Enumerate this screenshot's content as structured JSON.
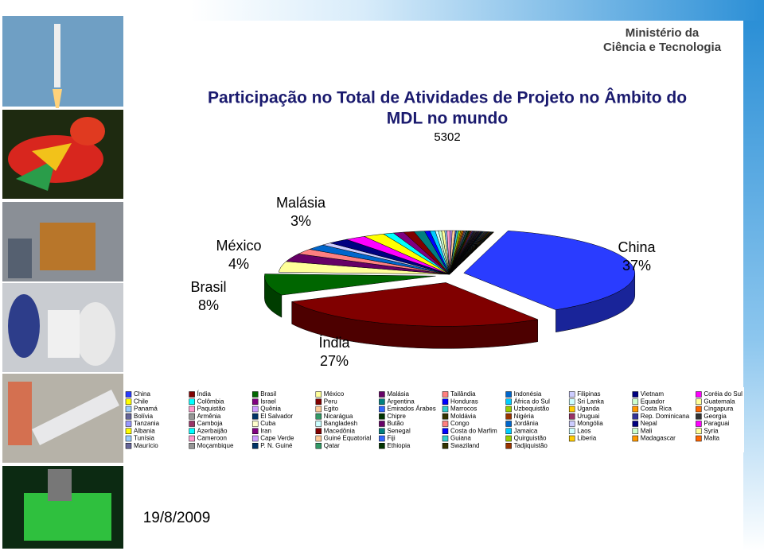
{
  "slide": {
    "logo": [
      "Ministério da",
      "Ciência e Tecnologia"
    ],
    "date": "19/8/2009"
  },
  "chart_data": {
    "type": "pie3d",
    "title": [
      "Participação no Total de Atividades de Projeto no Âmbito do",
      "MDL no mundo"
    ],
    "subtitle": "5302",
    "categories": [
      "China",
      "Índia",
      "Brasil",
      "México",
      "Malásia",
      "Tailândia",
      "Indonésia",
      "Filipinas",
      "Vietnam",
      "Coréia do Sul",
      "Chile",
      "Colômbia",
      "Israel",
      "Peru",
      "Argentina",
      "Honduras",
      "África do Sul",
      "Sri Lanka",
      "Equador",
      "Guatemala",
      "Panamá",
      "Paquistão",
      "Quênia",
      "Egito",
      "Emirados Árabes",
      "Marrocos",
      "Uzbequistão",
      "Uganda",
      "Costa Rica",
      "Cingapura",
      "Bolívia",
      "Armênia",
      "El Salvador",
      "Nicarágua",
      "Chipre",
      "Moldávia",
      "Nigéria",
      "Uruguai",
      "Rep. Dominicana",
      "Georgia",
      "Tanzania",
      "Camboja",
      "Cuba",
      "Bangladesh",
      "Butão",
      "Congo",
      "Jordânia",
      "Mongólia",
      "Nepal",
      "Paraguai",
      "Albania",
      "Azerbaijão",
      "Iran",
      "Macedônia",
      "Senegal",
      "Costa do Marfim",
      "Jamaica",
      "Laos",
      "Mali",
      "Syria",
      "Tunísia",
      "Cameroon",
      "Cape Verde",
      "Guiné Equatorial",
      "Fiji",
      "Guiana",
      "Quirguistão",
      "Liberia",
      "Madagascar",
      "Malta",
      "Maurício",
      "Moçambique",
      "P. N. Guiné",
      "Qatar",
      "Ethiopia",
      "Swaziland",
      "Tadjiquistão"
    ],
    "values": [
      37,
      27,
      8,
      4,
      3,
      2,
      2,
      1,
      2,
      2,
      2,
      1,
      1,
      1,
      1,
      0.5,
      0.5,
      0.3,
      0.3,
      0.3,
      0.2,
      0.3,
      0.2,
      0.3,
      0.1,
      0.2,
      0.2,
      0.1,
      0.1,
      0.1,
      0.1,
      0.1,
      0.1,
      0.1,
      0.1,
      0.1,
      0.1,
      0.1,
      0.1,
      0.1,
      0.05,
      0.05,
      0.05,
      0.05,
      0.05,
      0.05,
      0.05,
      0.05,
      0.05,
      0.05,
      0.05,
      0.05,
      0.05,
      0.05,
      0.05,
      0.05,
      0.05,
      0.05,
      0.05,
      0.05,
      0.05,
      0.05,
      0.05,
      0.05,
      0.05,
      0.05,
      0.05,
      0.05,
      0.05,
      0.05,
      0.05,
      0.05,
      0.05,
      0.05,
      0.05,
      0.05,
      0.05
    ],
    "value_labels": [
      "37%",
      "27%",
      "8%",
      "4%",
      "3%",
      null,
      null,
      null,
      null,
      null,
      null,
      null,
      null,
      null,
      null,
      null,
      null,
      null,
      null,
      null,
      null,
      null,
      null,
      null,
      null,
      null,
      null,
      null,
      null,
      null,
      null,
      null,
      null,
      null,
      null,
      null,
      null,
      null,
      null,
      null,
      null,
      null,
      null,
      null,
      null,
      null,
      null,
      null,
      null,
      null,
      null,
      null,
      null,
      null,
      null,
      null,
      null,
      null,
      null,
      null,
      null,
      null,
      null,
      null,
      null,
      null,
      null,
      null,
      null,
      null,
      null,
      null,
      null,
      null,
      null,
      null,
      null
    ],
    "colors": [
      "#2a3cff",
      "#800000",
      "#006600",
      "#ffff99",
      "#660066",
      "#ff8080",
      "#0066cc",
      "#ccccff",
      "#000080",
      "#ff00ff",
      "#ffff00",
      "#00ffff",
      "#800080",
      "#800000",
      "#008080",
      "#0000ff",
      "#00ccff",
      "#ccffff",
      "#ccffcc",
      "#ffff99",
      "#99ccff",
      "#ff99cc",
      "#cc99ff",
      "#ffcc99",
      "#3366ff",
      "#33cccc",
      "#99cc00",
      "#ffcc00",
      "#ff9900",
      "#ff6600",
      "#666699",
      "#969696",
      "#003366",
      "#339966",
      "#003300",
      "#333300",
      "#993300",
      "#993366",
      "#333399",
      "#333333",
      "#9999ff",
      "#993366",
      "#ffffcc",
      "#ccffff",
      "#660066",
      "#ff8080",
      "#0066cc",
      "#ccccff",
      "#000080",
      "#ff00ff",
      "#ffff00",
      "#00ffff",
      "#800080",
      "#800000",
      "#008080",
      "#0000ff",
      "#00ccff",
      "#ccffff",
      "#ccffcc",
      "#ffff99",
      "#99ccff",
      "#ff99cc",
      "#cc99ff",
      "#ffcc99",
      "#3366ff",
      "#33cccc",
      "#99cc00",
      "#ffcc00",
      "#ff9900",
      "#ff6600",
      "#666699",
      "#969696",
      "#003366",
      "#339966",
      "#003300",
      "#333300",
      "#993300"
    ],
    "legend": "bottom"
  }
}
